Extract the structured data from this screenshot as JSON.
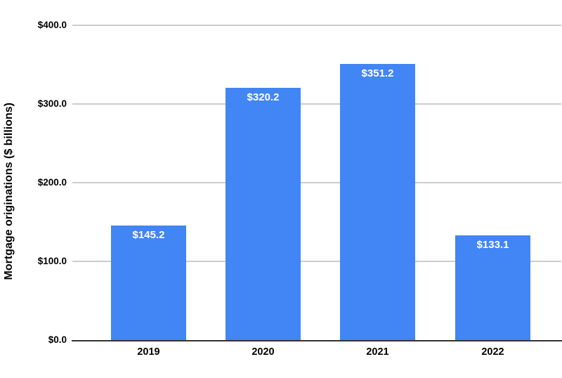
{
  "chart_data": {
    "type": "bar",
    "categories": [
      "2019",
      "2020",
      "2021",
      "2022"
    ],
    "values": [
      145.2,
      320.2,
      351.2,
      133.1
    ],
    "bar_labels": [
      "$145.2",
      "$320.2",
      "$351.2",
      "$133.1"
    ],
    "title": "",
    "xlabel": "",
    "ylabel": "Mortgage originations ($ billions)",
    "ylim": [
      0,
      400
    ],
    "ytick_values": [
      0,
      100,
      200,
      300,
      400
    ],
    "ytick_labels": [
      "$0.0",
      "$100.0",
      "$200.0",
      "$300.0",
      "$400.0"
    ],
    "grid": true,
    "legend_position": "none",
    "colors": {
      "bar": "#4285f4",
      "bar_label_text": "#ffffff",
      "gridline": "#cccccc",
      "axis_line": "#333333",
      "text": "#000000",
      "background": "#ffffff"
    }
  }
}
